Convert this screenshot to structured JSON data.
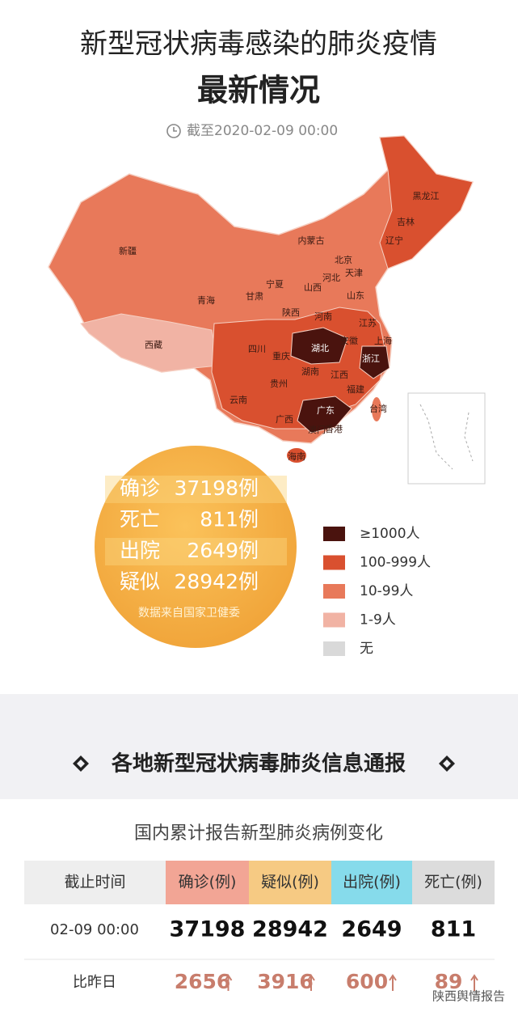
{
  "header": {
    "title": "新型冠状病毒感染的肺炎疫情",
    "subtitle": "最新情况",
    "as_of": "截至2020-02-09 00:00"
  },
  "map": {
    "provinces": [
      "新疆",
      "西藏",
      "青海",
      "甘肃",
      "内蒙古",
      "宁夏",
      "陕西",
      "山西",
      "河北",
      "北京",
      "天津",
      "辽宁",
      "吉林",
      "黑龙江",
      "山东",
      "河南",
      "江苏",
      "安徽",
      "上海",
      "湖北",
      "浙江",
      "四川",
      "重庆",
      "湖南",
      "江西",
      "贵州",
      "福建",
      "云南",
      "广西",
      "广东",
      "台湾",
      "澳门",
      "香港",
      "海南"
    ],
    "legend": [
      {
        "label": "≥1000人",
        "color": "#4a130e"
      },
      {
        "label": "100-999人",
        "color": "#d9502f"
      },
      {
        "label": "10-99人",
        "color": "#e8795a"
      },
      {
        "label": "1-9人",
        "color": "#f1b3a4"
      },
      {
        "label": "无",
        "color": "#d9d9d9"
      }
    ]
  },
  "summary": {
    "rows": [
      {
        "label": "确诊",
        "value": "37198例"
      },
      {
        "label": "死亡",
        "value": "811例"
      },
      {
        "label": "出院",
        "value": "2649例"
      },
      {
        "label": "疑似",
        "value": "28942例"
      }
    ],
    "source": "数据来自国家卫健委"
  },
  "section_title": "各地新型冠状病毒肺炎信息通报",
  "table": {
    "title": "国内累计报告新型肺炎病例变化",
    "columns": [
      "截止时间",
      "确诊(例)",
      "疑似(例)",
      "出院(例)",
      "死亡(例)"
    ],
    "rows": [
      [
        "02-09 00:00",
        "37198",
        "28942",
        "2649",
        "811"
      ],
      [
        "比昨日",
        "2656",
        "3916",
        "600",
        "89"
      ]
    ]
  },
  "watermark": "陕西舆情报告"
}
